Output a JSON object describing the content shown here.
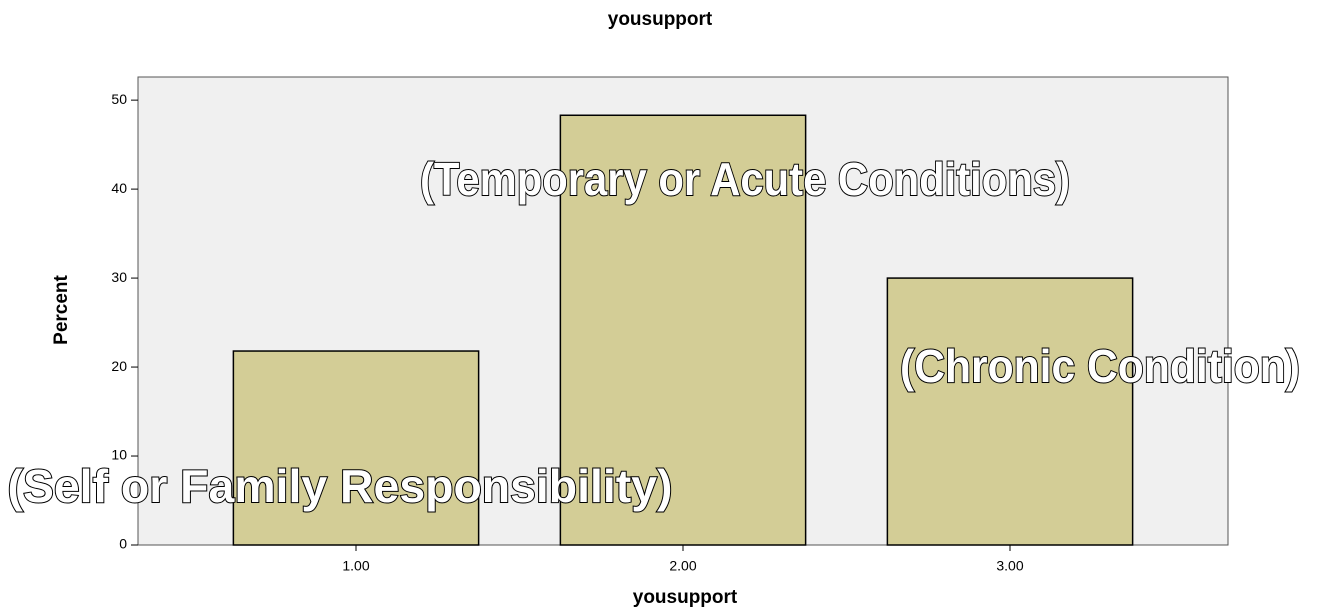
{
  "chart_data": {
    "type": "bar",
    "title": "yousupport",
    "x_label": "yousupport",
    "y_label": "Percent",
    "categories": [
      "1.00",
      "2.00",
      "3.00"
    ],
    "values": [
      21.8,
      48.3,
      30.0
    ],
    "color": "#d3cd96",
    "ylim": [
      0,
      52.6
    ],
    "yticks": [
      0,
      10,
      20,
      30,
      40,
      50
    ],
    "annotations": [
      "(Self or Family Responsibility)",
      "(Temporary or Acute Conditions)",
      "(Chronic Condition)"
    ]
  }
}
